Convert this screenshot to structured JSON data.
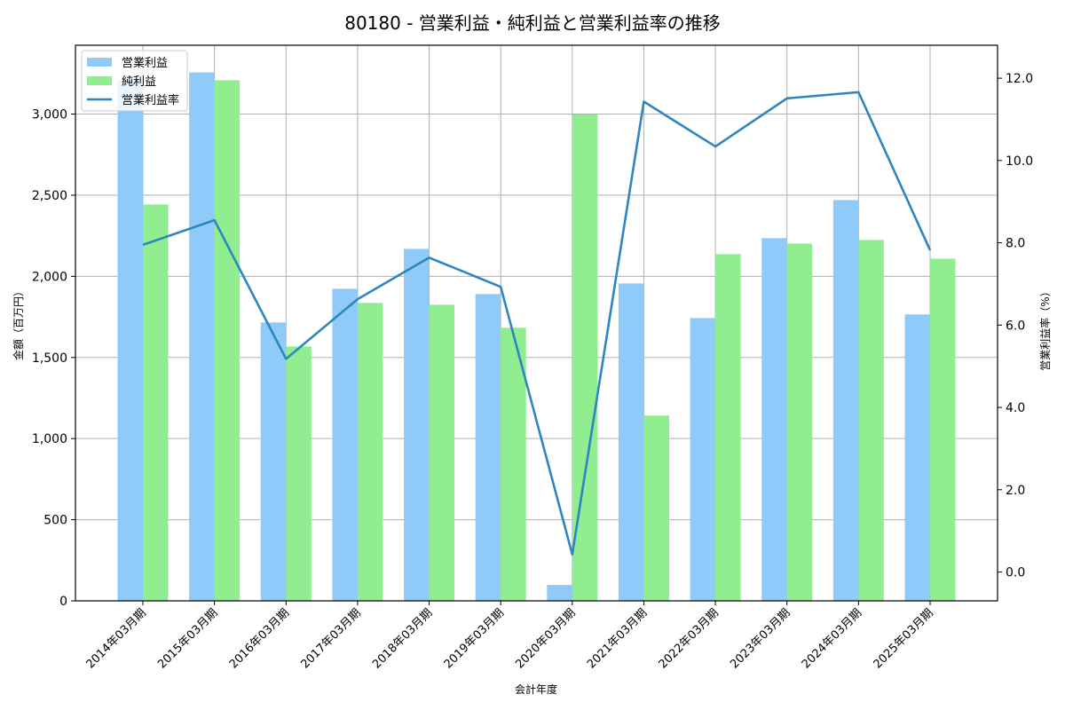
{
  "chart_data": {
    "type": "bar+line",
    "title": "80180 - 営業利益・純利益と営業利益率の推移",
    "xlabel": "会計年度",
    "ylabel": "金額（百万円）",
    "ylabel_right": "営業利益率（%）",
    "categories": [
      "2014年03月期",
      "2015年03月期",
      "2016年03月期",
      "2017年03月期",
      "2018年03月期",
      "2019年03月期",
      "2020年03月期",
      "2021年03月期",
      "2022年03月期",
      "2023年03月期",
      "2024年03月期",
      "2025年03月期"
    ],
    "series": [
      {
        "name": "営業利益",
        "type": "bar",
        "axis": "left",
        "color": "#90caf9",
        "values": [
          3208,
          3257,
          1716,
          1923,
          2169,
          1891,
          98,
          1956,
          1743,
          2235,
          2470,
          1765
        ]
      },
      {
        "name": "純利益",
        "type": "bar",
        "axis": "left",
        "color": "#90ee90",
        "values": [
          2443,
          3208,
          1568,
          1836,
          1825,
          1683,
          2998,
          1142,
          2137,
          2202,
          2224,
          2109
        ]
      },
      {
        "name": "営業利益率",
        "type": "line",
        "axis": "right",
        "color": "#2e86c1",
        "values": [
          7.95,
          8.55,
          5.18,
          6.63,
          7.64,
          6.93,
          0.43,
          11.43,
          10.34,
          11.51,
          11.66,
          7.82
        ]
      }
    ],
    "ylim": [
      0,
      3424
    ],
    "ylim_right": [
      -0.7,
      12.8
    ],
    "yticks": [
      0,
      500,
      1000,
      1500,
      2000,
      2500,
      3000
    ],
    "yticks_labels": [
      "0",
      "500",
      "1,000",
      "1,500",
      "2,000",
      "2,500",
      "3,000"
    ],
    "yticks_right": [
      0,
      2,
      4,
      6,
      8,
      10,
      12
    ],
    "yticks_right_labels": [
      "0.0",
      "2.0",
      "4.0",
      "6.0",
      "8.0",
      "10.0",
      "12.0"
    ],
    "grid": true,
    "legend_position": "upper left"
  },
  "legend": {
    "items": [
      {
        "label": "営業利益",
        "kind": "patch",
        "color": "#90caf9"
      },
      {
        "label": "純利益",
        "kind": "patch",
        "color": "#90ee90"
      },
      {
        "label": "営業利益率",
        "kind": "line",
        "color": "#2e86c1"
      }
    ]
  }
}
